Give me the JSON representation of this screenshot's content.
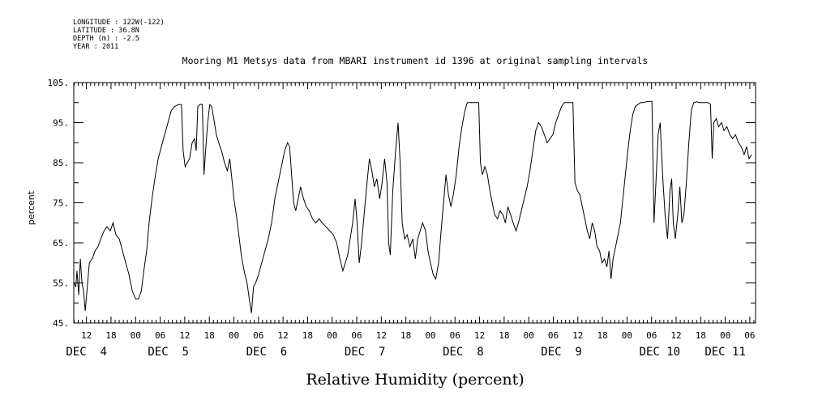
{
  "header": {
    "longitude": "LONGITUDE : 122W(-122)",
    "latitude": "LATITUDE : 36.8N",
    "depth": "DEPTH (m) : -2.5",
    "year": "YEAR : 2011"
  },
  "chart_data": {
    "type": "line",
    "title": "Mooring M1 Metsys data from MBARI instrument id 1396 at original sampling intervals",
    "xlabel": "Relative Humidity (percent)",
    "ylabel": "percent",
    "ylim": [
      45,
      105
    ],
    "y_ticks": [
      "45.",
      "55.",
      "65.",
      "75.",
      "85.",
      "95.",
      "105."
    ],
    "x_hour_ticks": [
      {
        "t": 12,
        "label": "12"
      },
      {
        "t": 18,
        "label": "18"
      },
      {
        "t": 24,
        "label": "00"
      },
      {
        "t": 30,
        "label": "06"
      },
      {
        "t": 36,
        "label": "12"
      },
      {
        "t": 42,
        "label": "18"
      },
      {
        "t": 48,
        "label": "00"
      },
      {
        "t": 54,
        "label": "06"
      },
      {
        "t": 60,
        "label": "12"
      },
      {
        "t": 66,
        "label": "18"
      },
      {
        "t": 72,
        "label": "00"
      },
      {
        "t": 78,
        "label": "06"
      },
      {
        "t": 84,
        "label": "12"
      },
      {
        "t": 90,
        "label": "18"
      },
      {
        "t": 96,
        "label": "00"
      },
      {
        "t": 102,
        "label": "06"
      },
      {
        "t": 108,
        "label": "12"
      },
      {
        "t": 114,
        "label": "18"
      },
      {
        "t": 120,
        "label": "00"
      },
      {
        "t": 126,
        "label": "06"
      },
      {
        "t": 132,
        "label": "12"
      },
      {
        "t": 138,
        "label": "18"
      },
      {
        "t": 144,
        "label": "00"
      },
      {
        "t": 150,
        "label": "06"
      },
      {
        "t": 156,
        "label": "12"
      },
      {
        "t": 162,
        "label": "18"
      },
      {
        "t": 168,
        "label": "00"
      },
      {
        "t": 174,
        "label": "06"
      }
    ],
    "x_day_labels": [
      {
        "t": 12,
        "label": "DEC  4"
      },
      {
        "t": 32,
        "label": "DEC  5"
      },
      {
        "t": 56,
        "label": "DEC  6"
      },
      {
        "t": 80,
        "label": "DEC  7"
      },
      {
        "t": 104,
        "label": "DEC  8"
      },
      {
        "t": 128,
        "label": "DEC  9"
      },
      {
        "t": 152,
        "label": "DEC 10"
      },
      {
        "t": 168,
        "label": "DEC 11"
      }
    ],
    "xlim": [
      8.9,
      175.4
    ],
    "series": [
      {
        "color": "#000000",
        "points": [
          [
            9,
            55
          ],
          [
            9.4,
            54
          ],
          [
            9.7,
            58
          ],
          [
            10.1,
            52
          ],
          [
            10.5,
            61
          ],
          [
            10.9,
            55
          ],
          [
            11.3,
            53
          ],
          [
            11.7,
            48
          ],
          [
            12.2,
            54
          ],
          [
            12.7,
            60
          ],
          [
            13.4,
            61
          ],
          [
            14.1,
            63
          ],
          [
            14.8,
            64
          ],
          [
            15.5,
            66
          ],
          [
            16.3,
            68
          ],
          [
            17,
            69
          ],
          [
            17.8,
            68
          ],
          [
            18.5,
            70
          ],
          [
            19.2,
            67
          ],
          [
            20,
            66
          ],
          [
            20.8,
            63
          ],
          [
            21.6,
            60
          ],
          [
            22.4,
            57
          ],
          [
            23.2,
            53
          ],
          [
            24,
            51
          ],
          [
            24.7,
            51
          ],
          [
            25.4,
            53
          ],
          [
            26,
            58
          ],
          [
            26.7,
            63
          ],
          [
            27.3,
            70
          ],
          [
            28,
            76
          ],
          [
            28.7,
            81
          ],
          [
            29.5,
            86
          ],
          [
            30.3,
            89
          ],
          [
            31.1,
            92
          ],
          [
            31.9,
            95
          ],
          [
            32.7,
            98
          ],
          [
            33.5,
            99
          ],
          [
            34.4,
            99.5
          ],
          [
            35.2,
            99.5
          ],
          [
            35.6,
            88
          ],
          [
            36.1,
            84
          ],
          [
            36.6,
            85
          ],
          [
            37.2,
            86
          ],
          [
            37.8,
            90
          ],
          [
            38.4,
            91
          ],
          [
            38.8,
            88
          ],
          [
            39.2,
            99
          ],
          [
            39.8,
            99.6
          ],
          [
            40.3,
            99.5
          ],
          [
            40.7,
            82
          ],
          [
            41.1,
            88
          ],
          [
            41.6,
            95
          ],
          [
            42.1,
            99.5
          ],
          [
            42.6,
            99
          ],
          [
            43.1,
            96
          ],
          [
            43.7,
            92
          ],
          [
            44.3,
            90
          ],
          [
            45,
            88
          ],
          [
            45.7,
            85
          ],
          [
            46.4,
            83
          ],
          [
            47,
            86
          ],
          [
            47.5,
            81
          ],
          [
            48,
            76
          ],
          [
            48.6,
            72
          ],
          [
            49.2,
            67
          ],
          [
            49.8,
            62
          ],
          [
            50.5,
            58
          ],
          [
            51.2,
            55
          ],
          [
            51.9,
            50
          ],
          [
            52.3,
            47.5
          ],
          [
            52.8,
            54
          ],
          [
            53.3,
            55
          ],
          [
            54,
            57
          ],
          [
            54.8,
            60
          ],
          [
            55.6,
            63
          ],
          [
            56.4,
            66
          ],
          [
            57.2,
            70
          ],
          [
            58,
            76
          ],
          [
            58.8,
            80
          ],
          [
            59.6,
            84
          ],
          [
            60.4,
            88
          ],
          [
            61.1,
            90
          ],
          [
            61.6,
            89
          ],
          [
            62.1,
            82
          ],
          [
            62.6,
            75
          ],
          [
            63.1,
            73
          ],
          [
            63.7,
            76
          ],
          [
            64.3,
            79
          ],
          [
            65,
            76
          ],
          [
            65.7,
            74
          ],
          [
            66.4,
            73
          ],
          [
            67.2,
            71
          ],
          [
            68,
            70
          ],
          [
            68.8,
            71
          ],
          [
            69.6,
            70
          ],
          [
            70.5,
            69
          ],
          [
            71.4,
            68
          ],
          [
            72.3,
            67
          ],
          [
            73.1,
            65
          ],
          [
            73.9,
            61
          ],
          [
            74.6,
            58
          ],
          [
            75.2,
            60
          ],
          [
            75.8,
            62
          ],
          [
            76.4,
            66
          ],
          [
            77,
            70
          ],
          [
            77.6,
            76
          ],
          [
            78.1,
            70
          ],
          [
            78.6,
            60
          ],
          [
            79.2,
            65
          ],
          [
            79.8,
            72
          ],
          [
            80.5,
            80
          ],
          [
            81.1,
            86
          ],
          [
            81.7,
            83
          ],
          [
            82.3,
            79
          ],
          [
            82.9,
            81
          ],
          [
            83.6,
            76
          ],
          [
            84.2,
            80
          ],
          [
            84.8,
            86
          ],
          [
            85.4,
            80
          ],
          [
            85.8,
            65
          ],
          [
            86.2,
            62
          ],
          [
            86.8,
            78
          ],
          [
            87.5,
            88
          ],
          [
            88.1,
            95
          ],
          [
            88.6,
            85
          ],
          [
            89.1,
            70
          ],
          [
            89.7,
            66
          ],
          [
            90.3,
            67
          ],
          [
            91,
            64
          ],
          [
            91.7,
            66
          ],
          [
            92.3,
            61
          ],
          [
            92.9,
            66
          ],
          [
            93.5,
            68
          ],
          [
            94.1,
            70
          ],
          [
            94.8,
            68
          ],
          [
            95.4,
            63
          ],
          [
            96,
            60
          ],
          [
            96.7,
            57
          ],
          [
            97.3,
            56
          ],
          [
            98,
            60
          ],
          [
            98.6,
            68
          ],
          [
            99.2,
            75
          ],
          [
            99.8,
            82
          ],
          [
            100.4,
            77
          ],
          [
            101,
            74
          ],
          [
            101.6,
            77
          ],
          [
            102.3,
            82
          ],
          [
            103,
            89
          ],
          [
            103.7,
            94
          ],
          [
            104.4,
            98
          ],
          [
            105,
            100
          ],
          [
            105.7,
            100
          ],
          [
            106.4,
            100
          ],
          [
            107.1,
            100
          ],
          [
            107.8,
            100
          ],
          [
            108.2,
            85
          ],
          [
            108.7,
            82
          ],
          [
            109.3,
            84
          ],
          [
            109.9,
            82
          ],
          [
            110.5,
            78
          ],
          [
            111.1,
            75
          ],
          [
            111.7,
            72
          ],
          [
            112.4,
            71
          ],
          [
            113,
            73
          ],
          [
            113.7,
            72
          ],
          [
            114.3,
            70
          ],
          [
            114.9,
            74
          ],
          [
            115.6,
            72
          ],
          [
            116.2,
            70
          ],
          [
            116.9,
            68
          ],
          [
            117.5,
            70
          ],
          [
            118.2,
            73
          ],
          [
            118.9,
            76
          ],
          [
            119.6,
            79
          ],
          [
            120.3,
            83
          ],
          [
            121,
            88
          ],
          [
            121.7,
            93
          ],
          [
            122.4,
            95
          ],
          [
            123.1,
            94
          ],
          [
            123.8,
            92
          ],
          [
            124.5,
            90
          ],
          [
            125.2,
            91
          ],
          [
            125.9,
            92
          ],
          [
            126.6,
            95
          ],
          [
            127.3,
            97
          ],
          [
            128,
            99
          ],
          [
            128.7,
            100
          ],
          [
            129.4,
            100
          ],
          [
            130.1,
            100
          ],
          [
            130.8,
            100
          ],
          [
            131.3,
            80
          ],
          [
            131.9,
            78
          ],
          [
            132.5,
            77
          ],
          [
            133.1,
            74
          ],
          [
            133.7,
            71
          ],
          [
            134.3,
            68
          ],
          [
            134.9,
            66
          ],
          [
            135.5,
            70
          ],
          [
            136.1,
            68
          ],
          [
            136.7,
            64
          ],
          [
            137.3,
            63
          ],
          [
            137.9,
            60
          ],
          [
            138.5,
            61
          ],
          [
            139.1,
            59
          ],
          [
            139.6,
            63
          ],
          [
            140.1,
            56
          ],
          [
            140.6,
            61
          ],
          [
            141.2,
            64
          ],
          [
            141.8,
            67
          ],
          [
            142.4,
            70
          ],
          [
            143,
            76
          ],
          [
            143.6,
            82
          ],
          [
            144.2,
            88
          ],
          [
            144.8,
            93
          ],
          [
            145.4,
            97
          ],
          [
            146,
            99
          ],
          [
            146.6,
            99.5
          ],
          [
            147.3,
            100
          ],
          [
            148,
            100
          ],
          [
            148.7,
            100.2
          ],
          [
            149.4,
            100.3
          ],
          [
            150.1,
            100.3
          ],
          [
            150.6,
            70
          ],
          [
            151.1,
            81
          ],
          [
            151.6,
            92
          ],
          [
            152.1,
            95
          ],
          [
            152.7,
            82
          ],
          [
            153.3,
            72
          ],
          [
            153.9,
            66
          ],
          [
            154.5,
            78
          ],
          [
            154.9,
            81
          ],
          [
            155.3,
            70
          ],
          [
            155.8,
            66
          ],
          [
            156.4,
            72
          ],
          [
            156.9,
            79
          ],
          [
            157.4,
            70
          ],
          [
            157.9,
            72
          ],
          [
            158.5,
            80
          ],
          [
            159.1,
            90
          ],
          [
            159.7,
            98
          ],
          [
            160.3,
            100
          ],
          [
            161,
            100.2
          ],
          [
            161.7,
            100
          ],
          [
            162.4,
            100
          ],
          [
            163.1,
            100
          ],
          [
            163.8,
            100
          ],
          [
            164.4,
            99.6
          ],
          [
            164.8,
            86
          ],
          [
            165.2,
            95
          ],
          [
            165.8,
            96
          ],
          [
            166.4,
            94
          ],
          [
            167.1,
            95
          ],
          [
            167.7,
            93
          ],
          [
            168.4,
            94
          ],
          [
            169.1,
            92
          ],
          [
            169.8,
            91
          ],
          [
            170.5,
            92
          ],
          [
            171.2,
            90
          ],
          [
            171.9,
            89
          ],
          [
            172.6,
            87
          ],
          [
            173.2,
            89
          ],
          [
            173.8,
            86
          ],
          [
            174.4,
            87
          ]
        ]
      }
    ]
  }
}
